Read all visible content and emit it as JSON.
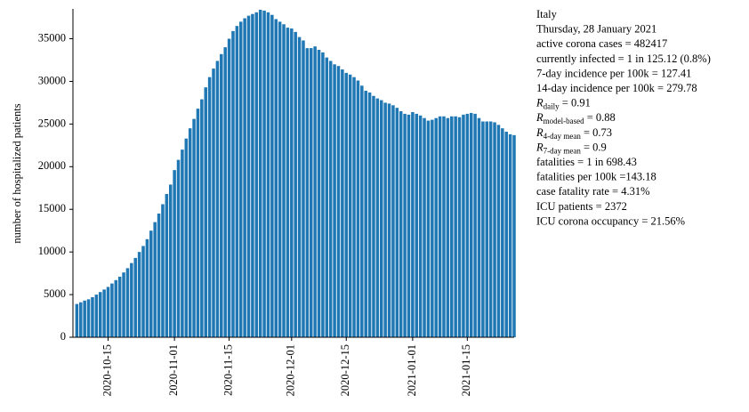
{
  "chart_data": {
    "type": "bar",
    "y_label": "number of hospitalized patients",
    "color": "#1f77b4",
    "xlim": [
      "2020-10-06",
      "2021-01-27"
    ],
    "xticks": [
      "2020-10-15",
      "2020-11-01",
      "2020-11-15",
      "2020-12-01",
      "2020-12-15",
      "2021-01-01",
      "2021-01-15"
    ],
    "ylim": [
      0,
      38500
    ],
    "yticks": [
      0,
      5000,
      10000,
      15000,
      20000,
      25000,
      30000,
      35000
    ],
    "start_date": "2020-10-07",
    "values": [
      3900,
      4100,
      4300,
      4450,
      4700,
      5000,
      5300,
      5600,
      5900,
      6300,
      6700,
      7100,
      7600,
      8100,
      8700,
      9300,
      10000,
      10700,
      11500,
      12500,
      13500,
      14500,
      15600,
      16800,
      17900,
      19600,
      20800,
      22000,
      23300,
      24500,
      25600,
      26800,
      27900,
      29300,
      30500,
      31500,
      32400,
      33200,
      34000,
      35000,
      35900,
      36500,
      37000,
      37400,
      37700,
      37900,
      38100,
      38400,
      38300,
      38100,
      37800,
      37300,
      37000,
      36700,
      36300,
      36200,
      35800,
      35200,
      34800,
      33900,
      33900,
      34100,
      33700,
      33400,
      32800,
      32400,
      32000,
      31800,
      31400,
      31000,
      30800,
      30500,
      30100,
      29500,
      28900,
      28700,
      28300,
      28000,
      27800,
      27500,
      27400,
      27200,
      26900,
      26500,
      26200,
      26100,
      26400,
      26200,
      26000,
      25700,
      25400,
      25500,
      25700,
      25900,
      25900,
      25700,
      25900,
      25900,
      25800,
      26100,
      26200,
      26300,
      26200,
      25700,
      25300,
      25300,
      25300,
      25200,
      24900,
      24500,
      24100,
      23800,
      23700
    ],
    "info": [
      {
        "text": "Italy"
      },
      {
        "text": "Thursday, 28 January 2021"
      },
      {
        "text": "active corona cases = 482417"
      },
      {
        "text": "currently infected = 1 in 125.12 (0.8%)"
      },
      {
        "text": "7-day incidence per 100k = 127.41"
      },
      {
        "text": "14-day incidence per 100k = 279.78"
      },
      {
        "symbol": "R",
        "sub": "daily",
        "text": " = 0.91"
      },
      {
        "symbol": "R",
        "sub": "model-based",
        "text": " = 0.88"
      },
      {
        "symbol": "R",
        "sub": "4-day mean",
        "text": " = 0.73"
      },
      {
        "symbol": "R",
        "sub": "7-day mean",
        "text": " = 0.9"
      },
      {
        "text": "fatalities = 1 in 698.43"
      },
      {
        "text": "fatalities per 100k =143.18"
      },
      {
        "text": "case fatality rate = 4.31%"
      },
      {
        "text": "ICU patients = 2372"
      },
      {
        "text": "ICU corona occupancy = 21.56%"
      }
    ]
  }
}
